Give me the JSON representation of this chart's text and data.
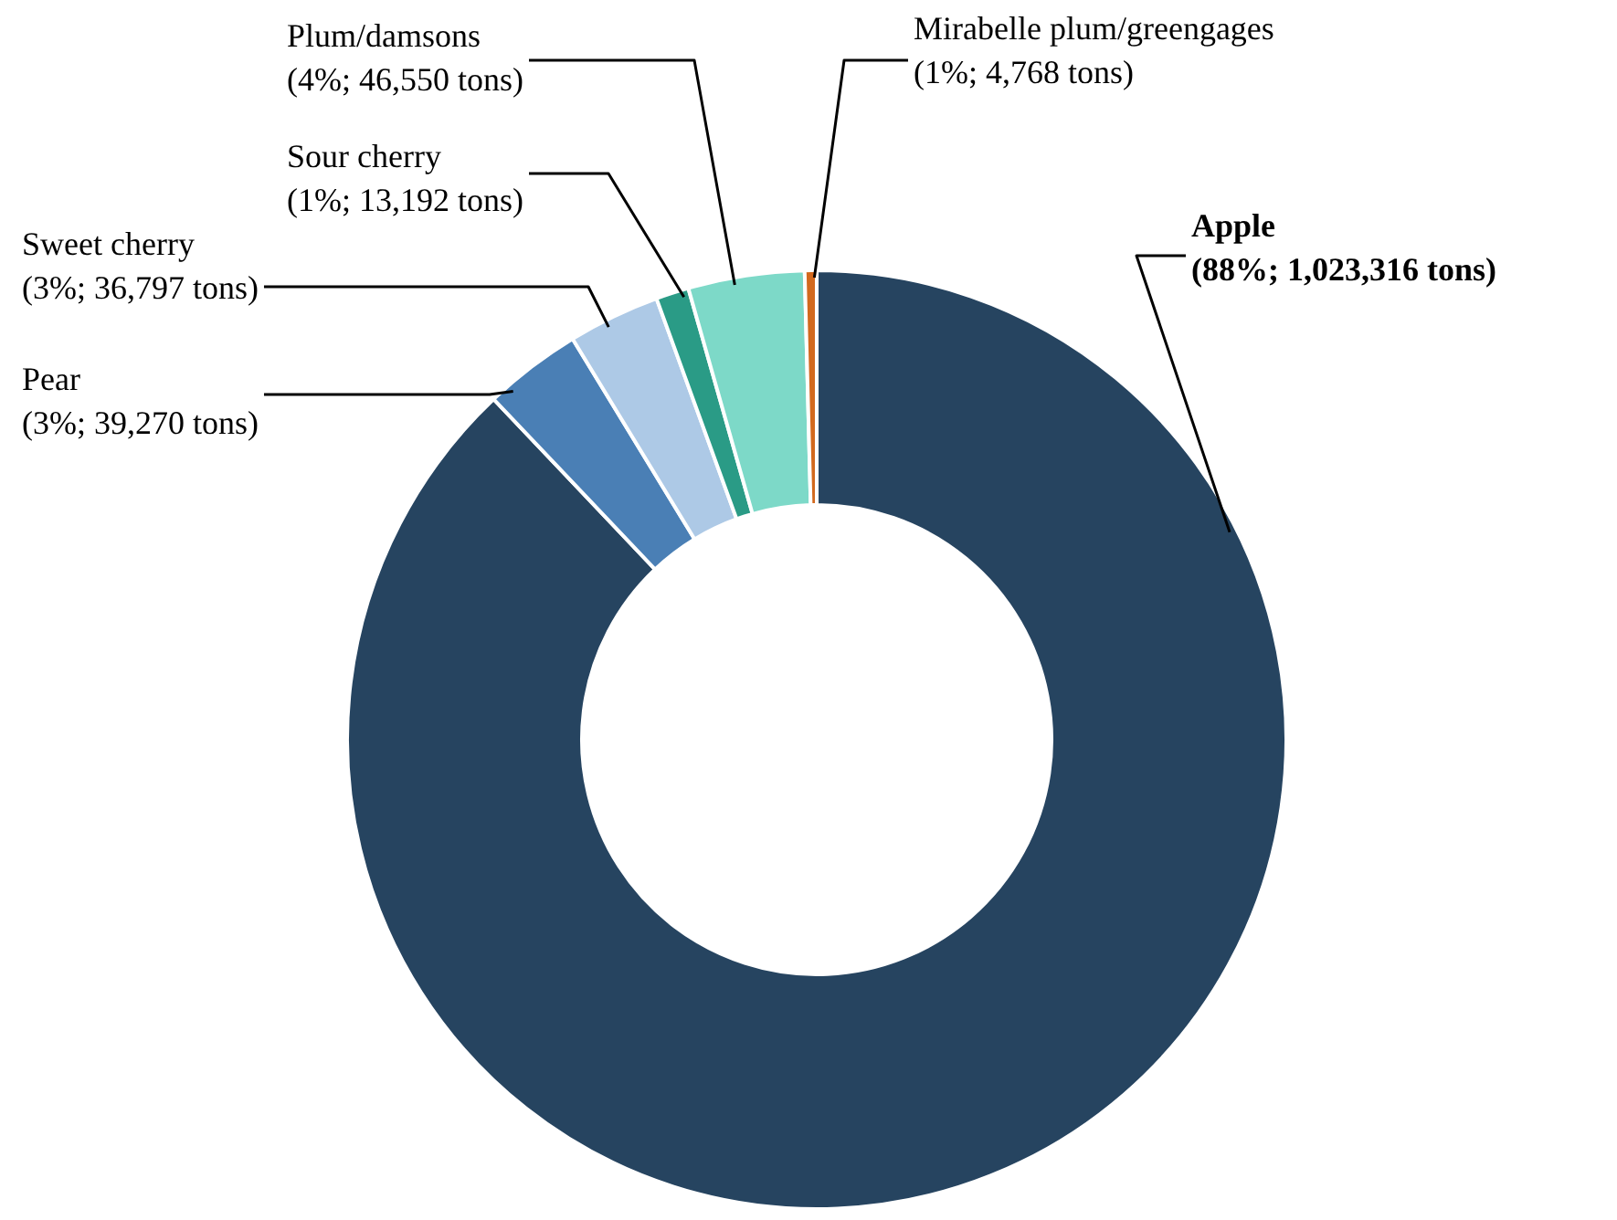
{
  "chart_data": {
    "type": "donut",
    "categories": [
      "Apple",
      "Pear",
      "Sweet cherry",
      "Sour cherry",
      "Plum/damsons",
      "Mirabelle plum/greengages"
    ],
    "values": [
      1023316,
      39270,
      36797,
      13192,
      46550,
      4768
    ],
    "colors": [
      "#264460",
      "#4a7fb5",
      "#adc9e6",
      "#2a9b86",
      "#7dd9c8",
      "#d2691e"
    ],
    "value_labels": [
      "(88%; 1,023,316 tons)",
      "(3%; 39,270 tons)",
      "(3%; 36,797 tons)",
      "(1%; 13,192 tons)",
      "(4%; 46,550 tons)",
      "(1%; 4,768 tons)"
    ],
    "legend": false
  }
}
